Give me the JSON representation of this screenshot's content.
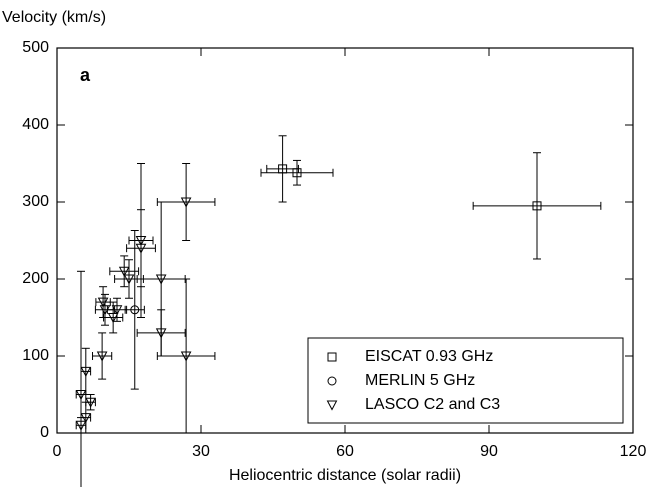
{
  "chart_data": {
    "type": "scatter",
    "title": "Velocity (km/s)",
    "x_label": "Heliocentric distance (solar radii)",
    "annotation": "a",
    "xlim": [
      0,
      120
    ],
    "xticks": [
      0,
      30,
      60,
      90,
      120
    ],
    "ylim": [
      0,
      500
    ],
    "yticks": [
      0,
      100,
      200,
      300,
      400,
      500
    ],
    "legend": "lower right",
    "series": [
      {
        "name": "EISCAT 0.93 GHz",
        "color": "#000000",
        "marker": "square",
        "x": [
          47,
          50,
          100
        ],
        "values": [
          343,
          338,
          295
        ],
        "xerr": [
          3.3,
          7.5,
          13.3
        ],
        "yerr": [
          43,
          16,
          69
        ]
      },
      {
        "name": "MERLIN 5 GHz",
        "color": "#000000",
        "marker": "circle",
        "x": [
          16.2
        ],
        "values": [
          160
        ],
        "xerr": [
          2
        ],
        "yerr": [
          103
        ]
      },
      {
        "name": "LASCO C2 and C3",
        "color": "#000000",
        "marker": "triangle-down",
        "x": [
          5,
          5,
          6,
          6,
          7,
          9.4,
          9.6,
          10,
          11.7,
          12.5,
          14,
          15,
          17.5,
          17.5,
          21.7,
          21.7,
          26.9,
          26.9
        ],
        "values": [
          10,
          50,
          80,
          20,
          40,
          100,
          170,
          160,
          150,
          160,
          210,
          200,
          250,
          240,
          200,
          130,
          300,
          100
        ],
        "xerr": [
          1,
          1,
          1,
          1,
          1,
          2,
          1.5,
          2,
          2,
          2,
          3,
          3,
          2.5,
          3,
          5,
          5,
          6,
          6
        ],
        "yerr": [
          10,
          160,
          30,
          20,
          10,
          30,
          20,
          20,
          20,
          15,
          20,
          25,
          100,
          50,
          100,
          30,
          50,
          100
        ]
      }
    ]
  }
}
